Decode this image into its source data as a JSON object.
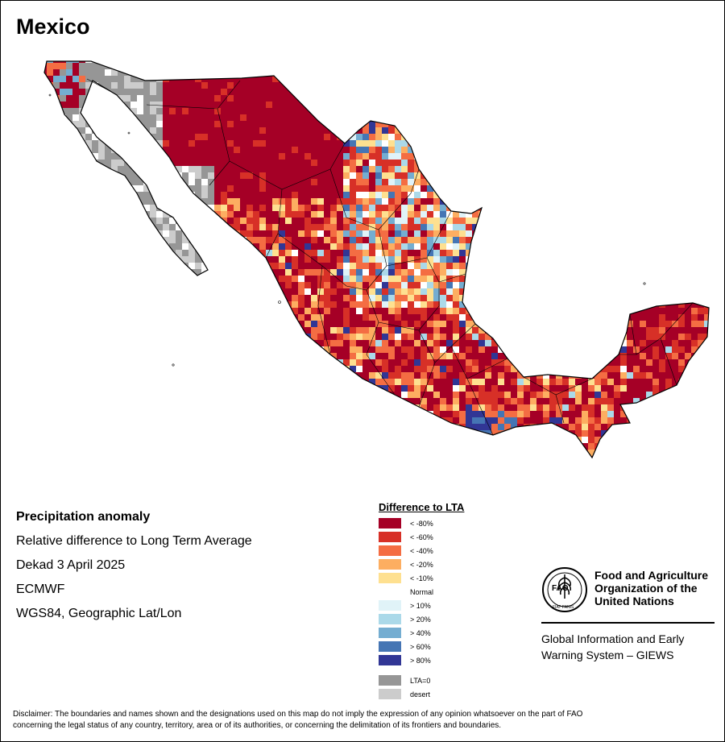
{
  "map": {
    "title": "Mexico",
    "colors": {
      "lt80": "#a50026",
      "lt60": "#d73027",
      "lt40": "#f46d43",
      "lt20": "#fdae61",
      "lt10": "#fee090",
      "normal": "#ffffff",
      "gt10": "#e0f3f8",
      "gt20": "#abd9e9",
      "gt40": "#74add1",
      "gt60": "#4575b4",
      "gt80": "#313695",
      "lta0": "#969696",
      "desert": "#cccccc"
    }
  },
  "info": {
    "heading": "Precipitation anomaly",
    "line1": "Relative difference to Long Term Average",
    "line2": "Dekad 3 April 2025",
    "line3": "ECMWF",
    "line4": "WGS84, Geographic Lat/Lon"
  },
  "legend": {
    "title": "Difference to LTA",
    "items": [
      {
        "label": "< -80%",
        "color": "#a50026"
      },
      {
        "label": "< -60%",
        "color": "#d73027"
      },
      {
        "label": "< -40%",
        "color": "#f46d43"
      },
      {
        "label": "< -20%",
        "color": "#fdae61"
      },
      {
        "label": "< -10%",
        "color": "#fee090"
      },
      {
        "label": "Normal",
        "color": "#ffffff"
      },
      {
        "label": "> 10%",
        "color": "#e0f3f8"
      },
      {
        "label": "> 20%",
        "color": "#abd9e9"
      },
      {
        "label": "> 40%",
        "color": "#74add1"
      },
      {
        "label": "> 60%",
        "color": "#4575b4"
      },
      {
        "label": "> 80%",
        "color": "#313695"
      }
    ],
    "extra": [
      {
        "label": "LTA=0",
        "color": "#969696"
      },
      {
        "label": "desert",
        "color": "#cccccc"
      }
    ]
  },
  "branding": {
    "org_line1": "Food and Agriculture",
    "org_line2": "Organization of the",
    "org_line3": "United Nations",
    "logo_text": "FAO",
    "logo_motto": "FIAT PANIS",
    "system_line1": "Global Information and Early",
    "system_line2": "Warning System – GIEWS"
  },
  "disclaimer": {
    "line1": "Disclaimer: The boundaries and names shown and the designations used on this map do not imply the expression of any opinion whatsoever on the part of FAO",
    "line2": "concerning the legal status of any country, territory, area or of its authorities, or concerning the delimitation of its frontiers and boundaries."
  }
}
